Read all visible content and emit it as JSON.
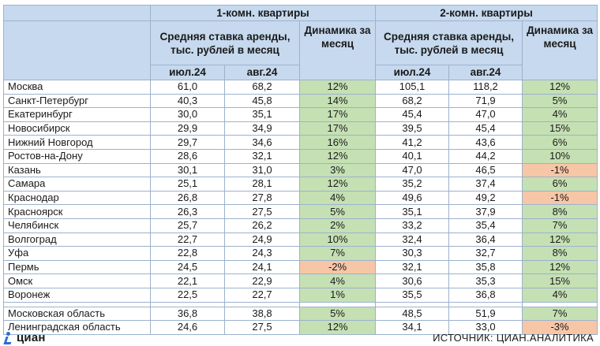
{
  "headers": {
    "group1": "1-комн. квартиры",
    "group2": "2-комн. квартиры",
    "avg_rate": "Средняя ставка аренды, тыс. рублей в месяц",
    "dynamics": "Динамика за месяц",
    "month1": "июл.24",
    "month2": "авг.24"
  },
  "rows": [
    {
      "city": "Москва",
      "r1_jul": "61,0",
      "r1_aug": "68,2",
      "r1_dyn": "12%",
      "r1_sign": "pos",
      "r2_jul": "105,1",
      "r2_aug": "118,2",
      "r2_dyn": "12%",
      "r2_sign": "pos"
    },
    {
      "city": "Санкт-Петербург",
      "r1_jul": "40,3",
      "r1_aug": "45,8",
      "r1_dyn": "14%",
      "r1_sign": "pos",
      "r2_jul": "68,2",
      "r2_aug": "71,9",
      "r2_dyn": "5%",
      "r2_sign": "pos"
    },
    {
      "city": "Екатеринбург",
      "r1_jul": "30,0",
      "r1_aug": "35,1",
      "r1_dyn": "17%",
      "r1_sign": "pos",
      "r2_jul": "45,4",
      "r2_aug": "47,0",
      "r2_dyn": "4%",
      "r2_sign": "pos"
    },
    {
      "city": "Новосибирск",
      "r1_jul": "29,9",
      "r1_aug": "34,9",
      "r1_dyn": "17%",
      "r1_sign": "pos",
      "r2_jul": "39,5",
      "r2_aug": "45,4",
      "r2_dyn": "15%",
      "r2_sign": "pos"
    },
    {
      "city": "Нижний Новгород",
      "r1_jul": "29,7",
      "r1_aug": "34,6",
      "r1_dyn": "16%",
      "r1_sign": "pos",
      "r2_jul": "41,2",
      "r2_aug": "43,6",
      "r2_dyn": "6%",
      "r2_sign": "pos"
    },
    {
      "city": "Ростов-на-Дону",
      "r1_jul": "28,6",
      "r1_aug": "32,1",
      "r1_dyn": "12%",
      "r1_sign": "pos",
      "r2_jul": "40,1",
      "r2_aug": "44,2",
      "r2_dyn": "10%",
      "r2_sign": "pos"
    },
    {
      "city": "Казань",
      "r1_jul": "30,1",
      "r1_aug": "31,0",
      "r1_dyn": "3%",
      "r1_sign": "pos",
      "r2_jul": "47,0",
      "r2_aug": "46,5",
      "r2_dyn": "-1%",
      "r2_sign": "neg"
    },
    {
      "city": "Самара",
      "r1_jul": "25,1",
      "r1_aug": "28,1",
      "r1_dyn": "12%",
      "r1_sign": "pos",
      "r2_jul": "35,2",
      "r2_aug": "37,4",
      "r2_dyn": "6%",
      "r2_sign": "pos"
    },
    {
      "city": "Краснодар",
      "r1_jul": "26,8",
      "r1_aug": "27,8",
      "r1_dyn": "4%",
      "r1_sign": "pos",
      "r2_jul": "49,6",
      "r2_aug": "49,2",
      "r2_dyn": "-1%",
      "r2_sign": "neg"
    },
    {
      "city": "Красноярск",
      "r1_jul": "26,3",
      "r1_aug": "27,5",
      "r1_dyn": "5%",
      "r1_sign": "pos",
      "r2_jul": "35,1",
      "r2_aug": "37,9",
      "r2_dyn": "8%",
      "r2_sign": "pos"
    },
    {
      "city": "Челябинск",
      "r1_jul": "25,7",
      "r1_aug": "26,2",
      "r1_dyn": "2%",
      "r1_sign": "pos",
      "r2_jul": "33,2",
      "r2_aug": "35,4",
      "r2_dyn": "7%",
      "r2_sign": "pos"
    },
    {
      "city": "Волгоград",
      "r1_jul": "22,7",
      "r1_aug": "24,9",
      "r1_dyn": "10%",
      "r1_sign": "pos",
      "r2_jul": "32,4",
      "r2_aug": "36,4",
      "r2_dyn": "12%",
      "r2_sign": "pos"
    },
    {
      "city": "Уфа",
      "r1_jul": "22,8",
      "r1_aug": "24,3",
      "r1_dyn": "7%",
      "r1_sign": "pos",
      "r2_jul": "30,3",
      "r2_aug": "32,7",
      "r2_dyn": "8%",
      "r2_sign": "pos"
    },
    {
      "city": "Пермь",
      "r1_jul": "24,5",
      "r1_aug": "24,1",
      "r1_dyn": "-2%",
      "r1_sign": "neg",
      "r2_jul": "32,1",
      "r2_aug": "35,8",
      "r2_dyn": "12%",
      "r2_sign": "pos"
    },
    {
      "city": "Омск",
      "r1_jul": "22,1",
      "r1_aug": "22,9",
      "r1_dyn": "4%",
      "r1_sign": "pos",
      "r2_jul": "30,6",
      "r2_aug": "35,3",
      "r2_dyn": "15%",
      "r2_sign": "pos"
    },
    {
      "city": "Воронеж",
      "r1_jul": "22,5",
      "r1_aug": "22,7",
      "r1_dyn": "1%",
      "r1_sign": "pos",
      "r2_jul": "35,5",
      "r2_aug": "36,8",
      "r2_dyn": "4%",
      "r2_sign": "pos"
    }
  ],
  "region_rows": [
    {
      "city": "Московская область",
      "r1_jul": "36,8",
      "r1_aug": "38,8",
      "r1_dyn": "5%",
      "r1_sign": "pos",
      "r2_jul": "48,5",
      "r2_aug": "51,9",
      "r2_dyn": "7%",
      "r2_sign": "pos"
    },
    {
      "city": "Ленинградская область",
      "r1_jul": "24,6",
      "r1_aug": "27,5",
      "r1_dyn": "12%",
      "r1_sign": "pos",
      "r2_jul": "34,1",
      "r2_aug": "33,0",
      "r2_dyn": "-3%",
      "r2_sign": "neg"
    }
  ],
  "footer": {
    "logo": "циан",
    "source": "ИСТОЧНИК: ЦИАН.АНАЛИТИКА"
  },
  "colors": {
    "header_bg": "#c6d9ee",
    "positive_bg": "#c5e0b3",
    "negative_bg": "#f7c6a6",
    "border": "#9cb2cc",
    "logo_blue": "#2a6fd6"
  }
}
